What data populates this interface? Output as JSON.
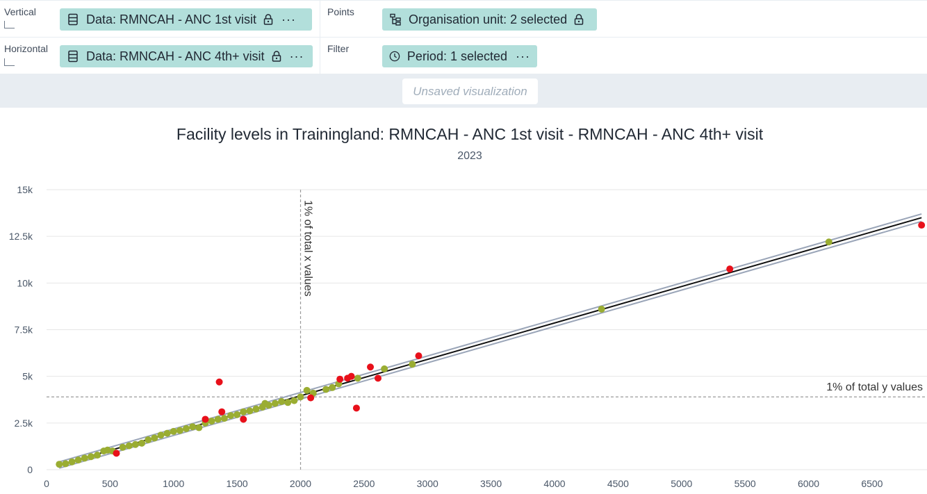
{
  "layout": {
    "vertical": {
      "label": "Vertical",
      "chip_label": "Data: RMNCAH - ANC 1st visit"
    },
    "horizontal": {
      "label": "Horizontal",
      "chip_label": "Data: RMNCAH - ANC 4th+ visit"
    },
    "points": {
      "label": "Points",
      "chip_label": "Organisation unit: 2 selected"
    },
    "filter": {
      "label": "Filter",
      "chip_label": "Period: 1 selected"
    },
    "more_glyph": "···"
  },
  "banner": {
    "text": "Unsaved visualization"
  },
  "chart": {
    "title": "Facility levels in Trainingland: RMNCAH - ANC 1st visit - RMNCAH - ANC 4th+ visit",
    "subtitle": "2023"
  },
  "chart_data": {
    "type": "scatter",
    "title": "Facility levels in Trainingland: RMNCAH - ANC 1st visit - RMNCAH - ANC 4th+ visit",
    "subtitle": "2023",
    "xlim": [
      0,
      6900
    ],
    "ylim": [
      0,
      15000
    ],
    "x_ticks": [
      0,
      500,
      1000,
      1500,
      2000,
      2500,
      3000,
      3500,
      4000,
      4500,
      5000,
      5500,
      6000,
      6500
    ],
    "x_tick_labels": [
      "0",
      "500",
      "1000",
      "1500",
      "2000",
      "2500",
      "3000",
      "3500",
      "4000",
      "4500",
      "5000",
      "5500",
      "6000",
      "6500"
    ],
    "y_ticks": [
      0,
      2500,
      5000,
      7500,
      10000,
      12500,
      15000
    ],
    "y_tick_labels": [
      "0",
      "2.5k",
      "5k",
      "7.5k",
      "10k",
      "12.5k",
      "15k"
    ],
    "grid": true,
    "colors": {
      "normal": "#9aad32",
      "outlier": "#e8101a",
      "regression": "#111111",
      "bounds": "#9aa5b8",
      "threshold": "#9a9a9a"
    },
    "regression_line": {
      "x": [
        100,
        6890
      ],
      "y": [
        250,
        13500
      ]
    },
    "upper_bound": {
      "x": [
        100,
        6890
      ],
      "y": [
        420,
        13700
      ]
    },
    "lower_bound": {
      "x": [
        100,
        6890
      ],
      "y": [
        80,
        13300
      ]
    },
    "threshold_x": {
      "value": 2000,
      "label": "1% of total x values"
    },
    "threshold_y": {
      "value": 3900,
      "label": "1% of total y values"
    },
    "series": [
      {
        "kind": "normal",
        "points": [
          [
            100,
            290
          ],
          [
            150,
            320
          ],
          [
            200,
            420
          ],
          [
            250,
            520
          ],
          [
            300,
            620
          ],
          [
            350,
            700
          ],
          [
            400,
            780
          ],
          [
            450,
            1000
          ],
          [
            480,
            1050
          ],
          [
            520,
            1000
          ],
          [
            600,
            1200
          ],
          [
            650,
            1280
          ],
          [
            700,
            1350
          ],
          [
            750,
            1420
          ],
          [
            800,
            1600
          ],
          [
            850,
            1700
          ],
          [
            900,
            1850
          ],
          [
            950,
            1950
          ],
          [
            1000,
            2050
          ],
          [
            1050,
            2100
          ],
          [
            1100,
            2200
          ],
          [
            1150,
            2300
          ],
          [
            1200,
            2250
          ],
          [
            1250,
            2500
          ],
          [
            1300,
            2600
          ],
          [
            1350,
            2700
          ],
          [
            1400,
            2750
          ],
          [
            1450,
            2900
          ],
          [
            1500,
            2950
          ],
          [
            1550,
            3100
          ],
          [
            1600,
            3150
          ],
          [
            1650,
            3250
          ],
          [
            1700,
            3350
          ],
          [
            1720,
            3550
          ],
          [
            1750,
            3450
          ],
          [
            1800,
            3550
          ],
          [
            1850,
            3650
          ],
          [
            1900,
            3600
          ],
          [
            1950,
            3700
          ],
          [
            2000,
            3900
          ],
          [
            2050,
            4250
          ],
          [
            2100,
            4100
          ],
          [
            2200,
            4300
          ],
          [
            2250,
            4400
          ],
          [
            2300,
            4600
          ],
          [
            2450,
            4900
          ],
          [
            2660,
            5400
          ],
          [
            2880,
            5650
          ],
          [
            4370,
            8600
          ],
          [
            6160,
            12200
          ]
        ]
      },
      {
        "kind": "outlier",
        "points": [
          [
            550,
            880
          ],
          [
            1250,
            2700
          ],
          [
            1360,
            4700
          ],
          [
            1380,
            3100
          ],
          [
            1550,
            2700
          ],
          [
            2080,
            3850
          ],
          [
            2310,
            4850
          ],
          [
            2370,
            4900
          ],
          [
            2400,
            5000
          ],
          [
            2440,
            3300
          ],
          [
            2550,
            5500
          ],
          [
            2610,
            4900
          ],
          [
            2930,
            6100
          ],
          [
            5380,
            10750
          ],
          [
            6890,
            13100
          ]
        ]
      }
    ]
  }
}
